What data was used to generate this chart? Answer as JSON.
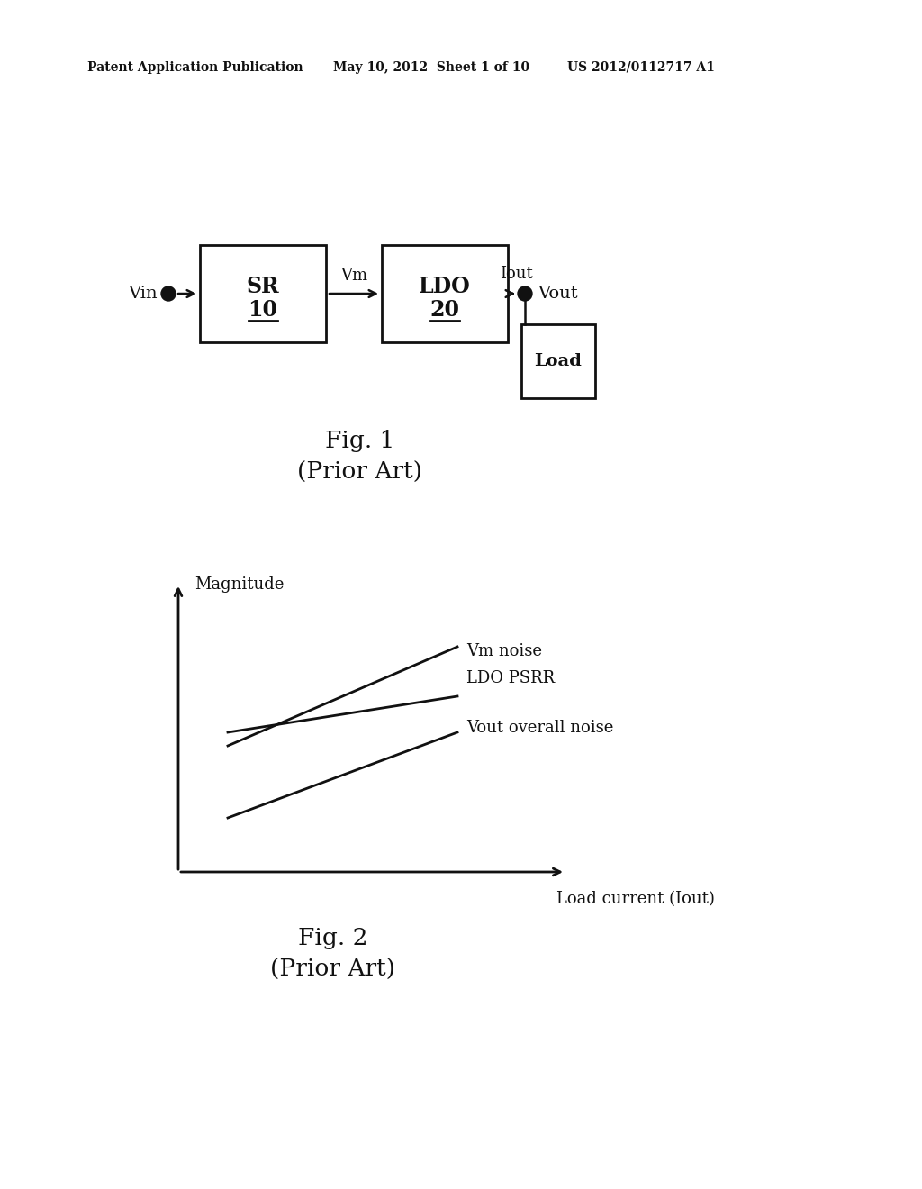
{
  "bg_color": "#ffffff",
  "header_left": "Patent Application Publication",
  "header_mid": "May 10, 2012  Sheet 1 of 10",
  "header_right": "US 2012/0112717 A1",
  "fig1_title": "Fig. 1",
  "fig1_subtitle": "(Prior Art)",
  "fig2_title": "Fig. 2",
  "fig2_subtitle": "(Prior Art)",
  "sr_label": "SR",
  "sr_number": "10",
  "ldo_label": "LDO",
  "ldo_number": "20",
  "load_label": "Load",
  "vin_label": "Vin",
  "vm_label": "Vm",
  "iout_label": "Iout",
  "vout_label": "Vout",
  "magnitude_label": "Magnitude",
  "xaxis_label": "Load current (Iout)",
  "line1_label": "Vm noise",
  "line2_label": "LDO PSRR",
  "line3_label": "Vout overall noise",
  "line_color": "#111111",
  "text_color": "#111111"
}
